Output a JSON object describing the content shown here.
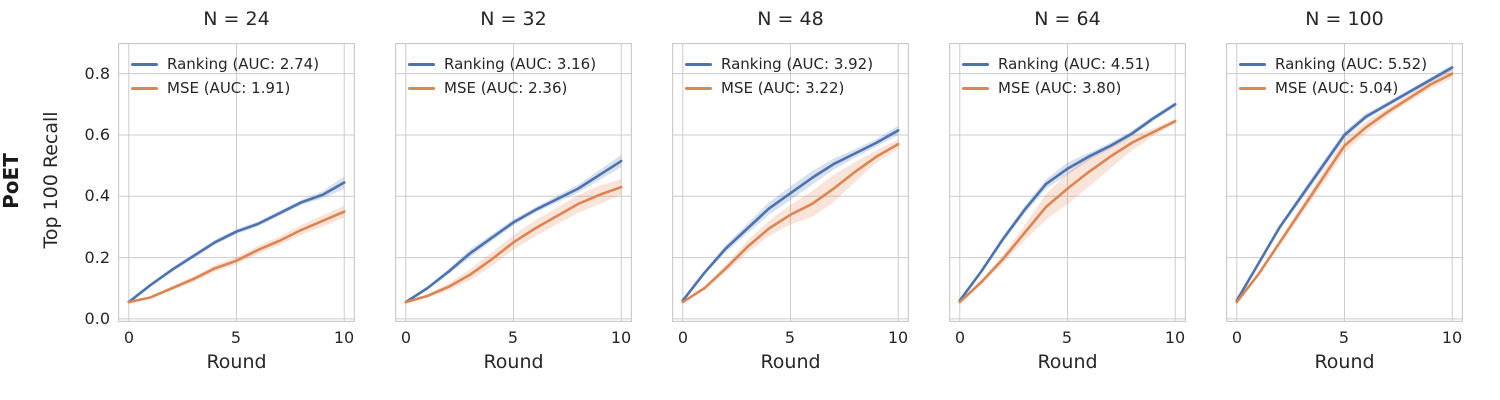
{
  "figure": {
    "row_label": "PoET",
    "ylabel": "Top 100 Recall",
    "xlabel": "Round",
    "xtick_labels": [
      "0",
      "5",
      "10"
    ],
    "ytick_labels": [
      "0.0",
      "0.2",
      "0.4",
      "0.6",
      "0.8"
    ],
    "grid_color": "#cccccc",
    "text_color": "#262626",
    "background": "#ffffff",
    "band_opacity": 0.22
  },
  "chart_data": [
    {
      "type": "line",
      "title": "N = 24",
      "xlabel": "Round",
      "ylabel": "Top 100 Recall",
      "x": [
        0,
        1,
        2,
        3,
        4,
        5,
        6,
        7,
        8,
        9,
        10
      ],
      "xlim": [
        -0.5,
        10.5
      ],
      "ylim": [
        -0.01,
        0.9
      ],
      "xticks": [
        0,
        5,
        10
      ],
      "yticks": [
        0.0,
        0.2,
        0.4,
        0.6,
        0.8
      ],
      "grid": true,
      "legend_position": "upper left",
      "series": [
        {
          "name": "Ranking",
          "label": "Ranking (AUC: 2.74)",
          "auc": 2.74,
          "color": "#4c72b0",
          "values": [
            0.055,
            0.11,
            0.16,
            0.205,
            0.25,
            0.285,
            0.31,
            0.345,
            0.38,
            0.405,
            0.445
          ],
          "band": [
            0.002,
            0.004,
            0.006,
            0.008,
            0.008,
            0.008,
            0.008,
            0.008,
            0.008,
            0.012,
            0.02
          ]
        },
        {
          "name": "MSE",
          "label": "MSE (AUC: 1.91)",
          "auc": 1.91,
          "color": "#dd8452",
          "values": [
            0.055,
            0.07,
            0.1,
            0.13,
            0.165,
            0.19,
            0.225,
            0.255,
            0.29,
            0.32,
            0.35
          ],
          "band": [
            0.002,
            0.004,
            0.007,
            0.009,
            0.011,
            0.012,
            0.013,
            0.014,
            0.016,
            0.018,
            0.02
          ]
        }
      ]
    },
    {
      "type": "line",
      "title": "N = 32",
      "xlabel": "Round",
      "ylabel": "Top 100 Recall",
      "x": [
        0,
        1,
        2,
        3,
        4,
        5,
        6,
        7,
        8,
        9,
        10
      ],
      "xlim": [
        -0.5,
        10.5
      ],
      "ylim": [
        -0.01,
        0.9
      ],
      "xticks": [
        0,
        5,
        10
      ],
      "yticks": [
        0.0,
        0.2,
        0.4,
        0.6,
        0.8
      ],
      "grid": true,
      "legend_position": "upper left",
      "series": [
        {
          "name": "Ranking",
          "label": "Ranking (AUC: 3.16)",
          "auc": 3.16,
          "color": "#4c72b0",
          "values": [
            0.055,
            0.1,
            0.155,
            0.215,
            0.265,
            0.315,
            0.355,
            0.39,
            0.425,
            0.47,
            0.515
          ],
          "band": [
            0.002,
            0.005,
            0.009,
            0.013,
            0.011,
            0.01,
            0.009,
            0.011,
            0.013,
            0.016,
            0.02
          ]
        },
        {
          "name": "MSE",
          "label": "MSE (AUC: 2.36)",
          "auc": 2.36,
          "color": "#dd8452",
          "values": [
            0.055,
            0.075,
            0.105,
            0.145,
            0.195,
            0.25,
            0.295,
            0.335,
            0.375,
            0.405,
            0.43
          ],
          "band": [
            0.002,
            0.006,
            0.012,
            0.018,
            0.022,
            0.024,
            0.026,
            0.027,
            0.029,
            0.03,
            0.025
          ]
        }
      ]
    },
    {
      "type": "line",
      "title": "N = 48",
      "xlabel": "Round",
      "ylabel": "Top 100 Recall",
      "x": [
        0,
        1,
        2,
        3,
        4,
        5,
        6,
        7,
        8,
        9,
        10
      ],
      "xlim": [
        -0.5,
        10.5
      ],
      "ylim": [
        -0.01,
        0.9
      ],
      "xticks": [
        0,
        5,
        10
      ],
      "yticks": [
        0.0,
        0.2,
        0.4,
        0.6,
        0.8
      ],
      "grid": true,
      "legend_position": "upper left",
      "series": [
        {
          "name": "Ranking",
          "label": "Ranking (AUC: 3.92)",
          "auc": 3.92,
          "color": "#4c72b0",
          "values": [
            0.06,
            0.15,
            0.23,
            0.295,
            0.36,
            0.41,
            0.46,
            0.505,
            0.54,
            0.575,
            0.615
          ],
          "band": [
            0.002,
            0.006,
            0.012,
            0.016,
            0.02,
            0.022,
            0.022,
            0.018,
            0.014,
            0.012,
            0.015
          ]
        },
        {
          "name": "MSE",
          "label": "MSE (AUC: 3.22)",
          "auc": 3.22,
          "color": "#dd8452",
          "values": [
            0.055,
            0.1,
            0.165,
            0.235,
            0.295,
            0.34,
            0.375,
            0.425,
            0.48,
            0.53,
            0.57
          ],
          "band": [
            0.002,
            0.006,
            0.012,
            0.02,
            0.025,
            0.032,
            0.042,
            0.045,
            0.032,
            0.02,
            0.015
          ]
        }
      ]
    },
    {
      "type": "line",
      "title": "N = 64",
      "xlabel": "Round",
      "ylabel": "Top 100 Recall",
      "x": [
        0,
        1,
        2,
        3,
        4,
        5,
        6,
        7,
        8,
        9,
        10
      ],
      "xlim": [
        -0.5,
        10.5
      ],
      "ylim": [
        -0.01,
        0.9
      ],
      "xticks": [
        0,
        5,
        10
      ],
      "yticks": [
        0.0,
        0.2,
        0.4,
        0.6,
        0.8
      ],
      "grid": true,
      "legend_position": "upper left",
      "series": [
        {
          "name": "Ranking",
          "label": "Ranking (AUC: 4.51)",
          "auc": 4.51,
          "color": "#4c72b0",
          "values": [
            0.06,
            0.155,
            0.26,
            0.355,
            0.44,
            0.49,
            0.53,
            0.565,
            0.605,
            0.655,
            0.7
          ],
          "band": [
            0.003,
            0.006,
            0.01,
            0.012,
            0.015,
            0.02,
            0.012,
            0.01,
            0.01,
            0.008,
            0.008
          ]
        },
        {
          "name": "MSE",
          "label": "MSE (AUC: 3.80)",
          "auc": 3.8,
          "color": "#dd8452",
          "values": [
            0.055,
            0.12,
            0.195,
            0.28,
            0.365,
            0.425,
            0.48,
            0.53,
            0.575,
            0.61,
            0.645
          ],
          "band": [
            0.003,
            0.008,
            0.014,
            0.025,
            0.042,
            0.05,
            0.048,
            0.038,
            0.025,
            0.012,
            0.008
          ]
        }
      ]
    },
    {
      "type": "line",
      "title": "N = 100",
      "xlabel": "Round",
      "ylabel": "Top 100 Recall",
      "x": [
        0,
        1,
        2,
        3,
        4,
        5,
        6,
        7,
        8,
        9,
        10
      ],
      "xlim": [
        -0.5,
        10.5
      ],
      "ylim": [
        -0.01,
        0.9
      ],
      "xticks": [
        0,
        5,
        10
      ],
      "yticks": [
        0.0,
        0.2,
        0.4,
        0.6,
        0.8
      ],
      "grid": true,
      "legend_position": "upper left",
      "series": [
        {
          "name": "Ranking",
          "label": "Ranking (AUC: 5.52)",
          "auc": 5.52,
          "color": "#4c72b0",
          "values": [
            0.06,
            0.18,
            0.3,
            0.4,
            0.5,
            0.6,
            0.66,
            0.7,
            0.74,
            0.78,
            0.82
          ],
          "band": [
            0.002,
            0.005,
            0.008,
            0.012,
            0.014,
            0.012,
            0.01,
            0.008,
            0.008,
            0.008,
            0.01
          ]
        },
        {
          "name": "MSE",
          "label": "MSE (AUC: 5.04)",
          "auc": 5.04,
          "color": "#dd8452",
          "values": [
            0.055,
            0.145,
            0.25,
            0.355,
            0.46,
            0.565,
            0.625,
            0.675,
            0.72,
            0.765,
            0.8
          ],
          "band": [
            0.002,
            0.005,
            0.01,
            0.015,
            0.02,
            0.022,
            0.018,
            0.014,
            0.012,
            0.014,
            0.015
          ]
        }
      ]
    }
  ]
}
